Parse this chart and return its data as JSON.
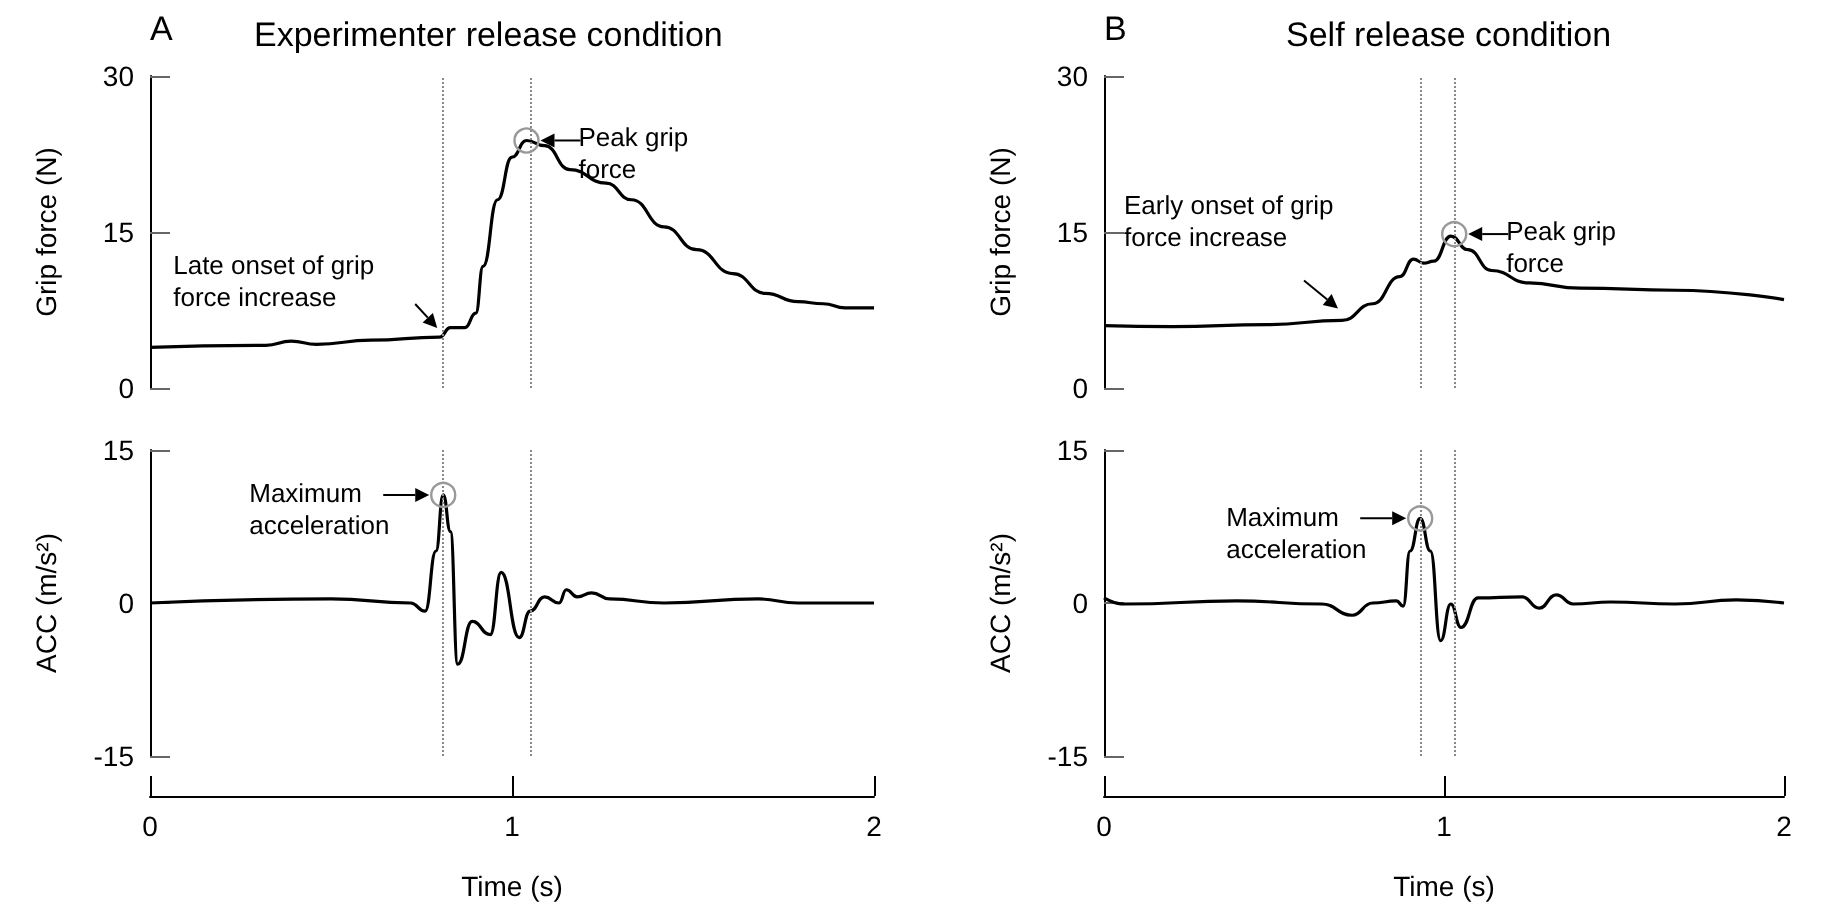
{
  "chart_data": [
    {
      "type": "line",
      "title": "Experimenter release condition",
      "ylabel": "Grip force (N)",
      "annotations": [
        "A",
        {
          "text": "Late onset of grip force increase",
          "x": 0.81,
          "y": 5
        },
        {
          "text": "Peak grip force",
          "x": 1.04,
          "y": 23.8
        }
      ],
      "xlim": [
        0,
        2
      ],
      "ylim": [
        0,
        30
      ],
      "yticks": [
        0,
        15,
        30
      ],
      "tick_labels": "y",
      "x": [
        0,
        0.32,
        0.39,
        0.46,
        0.61,
        0.8,
        0.83,
        0.87,
        0.9,
        0.92,
        0.96,
        1.0,
        1.04,
        1.09,
        1.16,
        1.26,
        1.33,
        1.42,
        1.51,
        1.61,
        1.7,
        1.79,
        1.86,
        1.92,
        2.0
      ],
      "series": [
        {
          "color": "#000000",
          "values": [
            3.9,
            4.1,
            4.5,
            4.2,
            4.6,
            4.9,
            5.8,
            5.8,
            7.2,
            11.7,
            18.1,
            22.2,
            23.8,
            23.3,
            21.0,
            19.7,
            18.1,
            15.5,
            13.3,
            11.0,
            9.1,
            8.3,
            8.1,
            7.7,
            7.7
          ]
        }
      ],
      "ref_lines": [
        {
          "axis": "x",
          "value": 0.81,
          "color": "#888888",
          "line_style": "dotted"
        },
        {
          "axis": "x",
          "value": 1.05,
          "color": "#888888",
          "line_style": "dotted"
        }
      ]
    },
    {
      "type": "line",
      "title": "Self release condition",
      "ylabel": "Grip force (N)",
      "annotations": [
        "B",
        {
          "text": "Early onset of grip force increase",
          "x": 0.7,
          "y": 6.5
        },
        {
          "text": "Peak grip force",
          "x": 1.03,
          "y": 14.8
        }
      ],
      "xlim": [
        0,
        2
      ],
      "ylim": [
        0,
        30
      ],
      "yticks": [
        0,
        15,
        30
      ],
      "tick_labels": "y",
      "x": [
        0,
        0.2,
        0.48,
        0.7,
        0.79,
        0.87,
        0.91,
        0.94,
        0.97,
        1.02,
        1.07,
        1.14,
        1.25,
        1.4,
        1.68,
        2.0
      ],
      "series": [
        {
          "color": "#000000",
          "values": [
            6.0,
            5.9,
            6.1,
            6.5,
            8.1,
            10.7,
            12.4,
            12.0,
            12.2,
            14.6,
            13.3,
            11.3,
            10.1,
            9.6,
            9.4,
            8.5
          ]
        }
      ],
      "ref_lines": [
        {
          "axis": "x",
          "value": 0.93,
          "color": "#888888",
          "line_style": "dotted"
        },
        {
          "axis": "x",
          "value": 1.03,
          "color": "#888888",
          "line_style": "dotted"
        }
      ]
    },
    {
      "type": "line",
      "xlabel": "Time (s)",
      "ylabel": "ACC (m/s²)",
      "annotations": [
        {
          "text": "Maximum acceleration",
          "x": 0.81,
          "y": 10.6
        }
      ],
      "xlim": [
        0,
        2
      ],
      "xticks": [
        0,
        1,
        2
      ],
      "ylim": [
        -15,
        15
      ],
      "yticks": [
        -15,
        0,
        15
      ],
      "x": [
        0,
        0.5,
        0.72,
        0.76,
        0.79,
        0.81,
        0.83,
        0.85,
        0.89,
        0.94,
        0.97,
        1.02,
        1.05,
        1.09,
        1.13,
        1.15,
        1.18,
        1.22,
        1.27,
        1.42,
        1.68,
        1.79,
        2.0
      ],
      "series": [
        {
          "color": "#000000",
          "values": [
            0,
            0.4,
            0,
            -0.8,
            5.1,
            10.6,
            7.0,
            -6.0,
            -1.8,
            -3.1,
            3.0,
            -3.4,
            -0.8,
            0.6,
            0,
            1.3,
            0.6,
            1.0,
            0.4,
            0,
            0.4,
            0,
            0
          ]
        }
      ],
      "ref_lines": [
        {
          "axis": "x",
          "value": 0.81,
          "color": "#888888",
          "line_style": "dotted"
        },
        {
          "axis": "x",
          "value": 1.05,
          "color": "#888888",
          "line_style": "dotted"
        }
      ]
    },
    {
      "type": "line",
      "xlabel": "Time (s)",
      "ylabel": "ACC (m/s²)",
      "annotations": [
        {
          "text": "Maximum acceleration",
          "x": 0.93,
          "y": 8.3
        }
      ],
      "xlim": [
        0,
        2
      ],
      "xticks": [
        0,
        1,
        2
      ],
      "ylim": [
        -15,
        15
      ],
      "yticks": [
        -15,
        0,
        15
      ],
      "x": [
        0,
        0.06,
        0.39,
        0.64,
        0.73,
        0.79,
        0.86,
        0.88,
        0.9,
        0.93,
        0.96,
        0.99,
        1.02,
        1.05,
        1.1,
        1.23,
        1.28,
        1.33,
        1.38,
        1.49,
        1.68,
        1.86,
        2.0
      ],
      "series": [
        {
          "color": "#000000",
          "values": [
            0.5,
            -0.1,
            0.2,
            -0.1,
            -1.2,
            0,
            0.2,
            -0.3,
            5.1,
            8.3,
            5.1,
            -3.7,
            -0.1,
            -2.4,
            0.5,
            0.6,
            -0.5,
            0.8,
            -0.1,
            0.1,
            -0.1,
            0.3,
            0
          ]
        }
      ],
      "ref_lines": [
        {
          "axis": "x",
          "value": 0.93,
          "color": "#888888",
          "line_style": "dotted"
        },
        {
          "axis": "x",
          "value": 1.03,
          "color": "#888888",
          "line_style": "dotted"
        }
      ]
    }
  ]
}
